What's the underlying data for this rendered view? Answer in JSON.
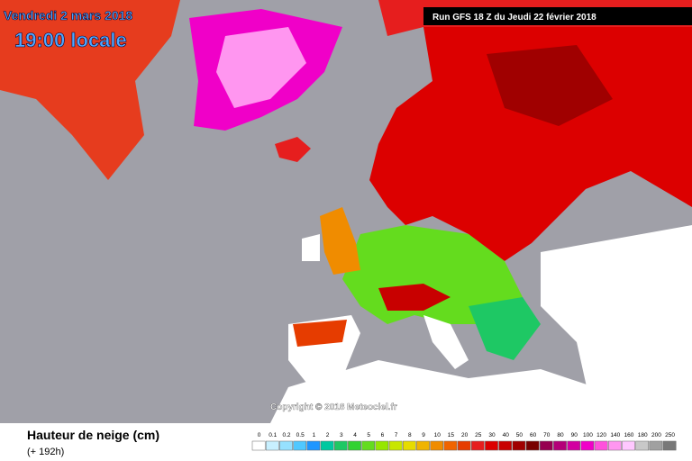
{
  "header": {
    "date": "Vendredi 2 mars 2018",
    "time": "19:00 locale",
    "run": "Run GFS 18 Z du Jeudi 22 février 2018"
  },
  "copyright": "Copyright © 2018 Meteociel.fr",
  "footer": {
    "title": "Hauteur de neige (cm)",
    "lead": "(+ 192h)"
  },
  "legend": {
    "ticks": [
      0,
      0.1,
      0.2,
      0.5,
      1,
      2,
      3,
      4,
      5,
      6,
      7,
      8,
      9,
      10,
      15,
      20,
      25,
      30,
      40,
      50,
      60,
      70,
      80,
      90,
      100,
      120,
      140,
      160,
      180,
      200,
      250
    ],
    "colors": [
      "#ffffff",
      "#c8f0ff",
      "#96e1ff",
      "#50c8ff",
      "#1e96ff",
      "#00c8a0",
      "#1ec864",
      "#32d232",
      "#64dc1e",
      "#96e600",
      "#c8e600",
      "#e6dc00",
      "#f0b400",
      "#f08c00",
      "#f06400",
      "#e63c00",
      "#e61e1e",
      "#dc0000",
      "#c80000",
      "#a00000",
      "#780000",
      "#960050",
      "#b40078",
      "#d200a0",
      "#f000c8",
      "#ff50dc",
      "#ff96f0",
      "#ffc8ff",
      "#c8c8c8",
      "#a0a0a0",
      "#787878"
    ]
  }
}
